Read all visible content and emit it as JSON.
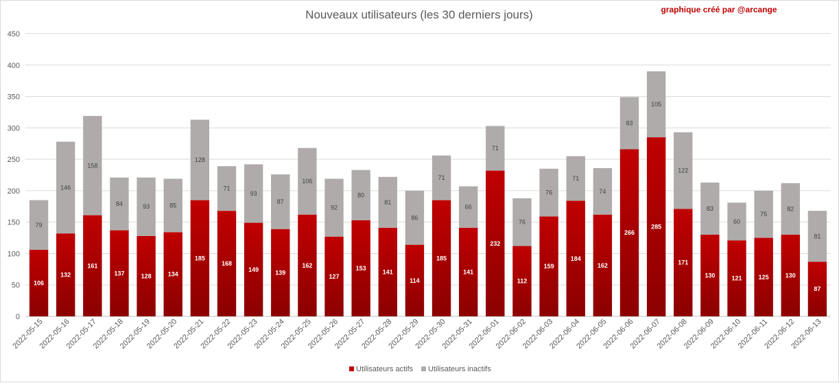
{
  "chart_data": {
    "type": "bar",
    "stacked": true,
    "title": "Nouveaux utilisateurs  (les 30 derniers  jours)",
    "credit": "graphique créé par @arcange",
    "ylim": [
      0,
      450
    ],
    "yticks": [
      0,
      50,
      100,
      150,
      200,
      250,
      300,
      350,
      400,
      450
    ],
    "grid": true,
    "legend_position": "bottom",
    "categories": [
      "2022-05-15",
      "2022-05-16",
      "2022-05-17",
      "2022-05-18",
      "2022-05-19",
      "2022-05-20",
      "2022-05-21",
      "2022-05-22",
      "2022-05-23",
      "2022-05-24",
      "2022-05-25",
      "2022-05-26",
      "2022-05-27",
      "2022-05-28",
      "2022-05-29",
      "2022-05-30",
      "2022-05-31",
      "2022-06-01",
      "2022-06-02",
      "2022-06-03",
      "2022-06-04",
      "2022-06-05",
      "2022-06-06",
      "2022-06-07",
      "2022-06-08",
      "2022-06-09",
      "2022-06-10",
      "2022-06-11",
      "2022-06-12",
      "2022-06-13"
    ],
    "series": [
      {
        "name": "Utilisateurs actifs",
        "color": "#c00000",
        "values": [
          106,
          132,
          161,
          137,
          128,
          134,
          185,
          168,
          149,
          139,
          162,
          127,
          153,
          141,
          114,
          185,
          141,
          232,
          112,
          159,
          184,
          162,
          266,
          285,
          171,
          130,
          121,
          125,
          130,
          87
        ]
      },
      {
        "name": "Utilisateurs inactifs",
        "color": "#afabab",
        "values": [
          79,
          146,
          158,
          84,
          93,
          85,
          128,
          71,
          93,
          87,
          106,
          92,
          80,
          81,
          86,
          71,
          66,
          71,
          76,
          76,
          71,
          74,
          83,
          105,
          122,
          83,
          60,
          75,
          82,
          81
        ]
      }
    ]
  }
}
